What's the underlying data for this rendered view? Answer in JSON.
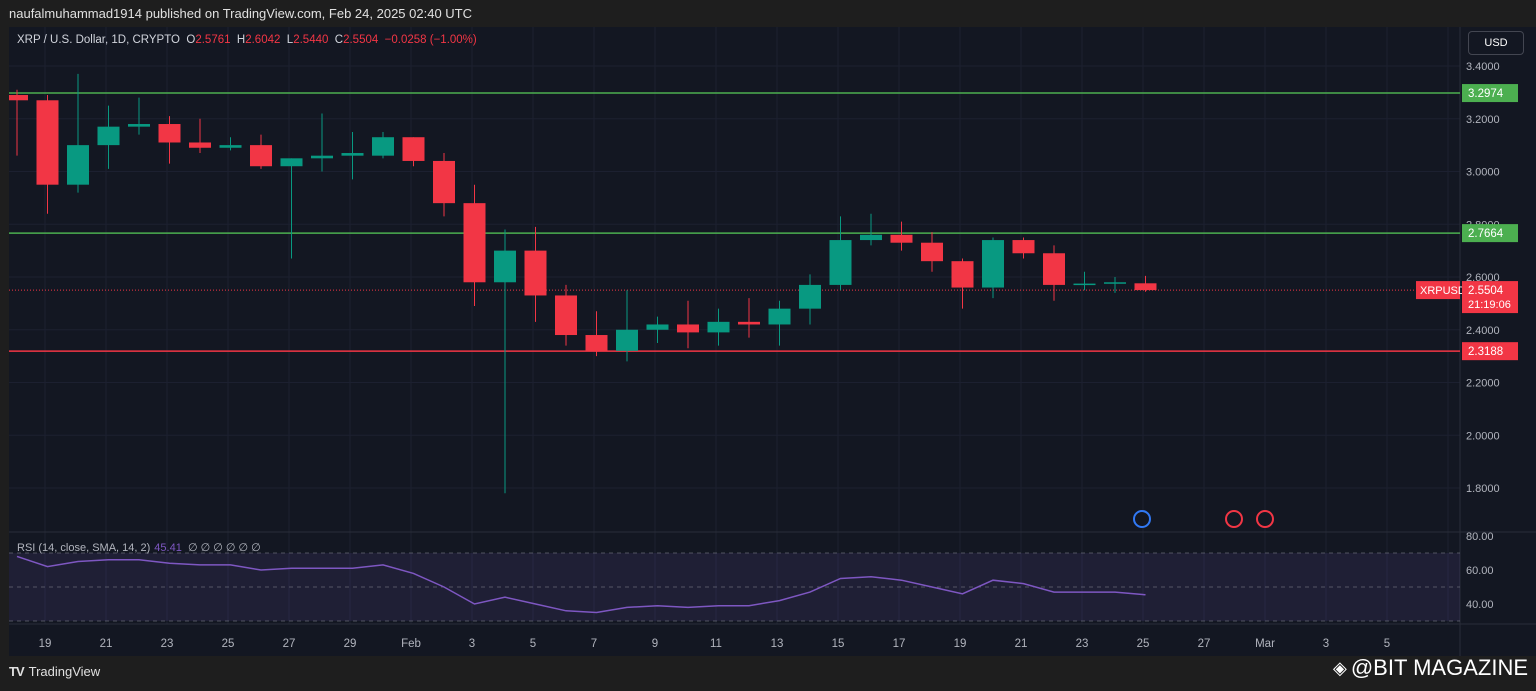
{
  "header": {
    "published": "naufalmuhammad1914 published on TradingView.com, Feb 24, 2025 02:40 UTC"
  },
  "legend": {
    "symbol": "XRP / U.S. Dollar, 1D, CRYPTO",
    "o_label": "O",
    "o": "2.5761",
    "h_label": "H",
    "h": "2.6042",
    "l_label": "L",
    "l": "2.5440",
    "c_label": "C",
    "c": "2.5504",
    "change": "−0.0258 (−1.00%)"
  },
  "currency_button": "USD",
  "price_axis": [
    "3.4000",
    "3.2000",
    "3.0000",
    "2.8000",
    "2.6000",
    "2.4000",
    "2.2000",
    "2.0000",
    "1.8000"
  ],
  "levels": [
    {
      "value": 3.2974,
      "label": "3.2974",
      "color": "#4caf50"
    },
    {
      "value": 2.7664,
      "label": "2.7664",
      "color": "#4caf50"
    },
    {
      "value": 2.3188,
      "label": "2.3188",
      "color": "#f23645"
    }
  ],
  "last_price": {
    "symbol": "XRPUSD",
    "price": "2.5504",
    "value": 2.5504,
    "countdown": "21:19:06"
  },
  "rsi": {
    "label": "RSI (14, close, SMA, 14, 2)",
    "value": "45.41",
    "extras": "∅ ∅ ∅ ∅ ∅ ∅",
    "axis": [
      "80.00",
      "60.00",
      "40.00"
    ]
  },
  "time_axis": [
    "19",
    "21",
    "23",
    "25",
    "27",
    "29",
    "Feb",
    "3",
    "5",
    "7",
    "9",
    "11",
    "13",
    "15",
    "17",
    "19",
    "21",
    "23",
    "25",
    "27",
    "Mar",
    "3",
    "5"
  ],
  "footer": {
    "brand": "TradingView",
    "watermark": "@BIT MAGAZINE"
  },
  "colors": {
    "up": "#089981",
    "down": "#f23645",
    "rsi": "#7e57c2"
  },
  "chart_data": {
    "type": "candlestick",
    "ylim": [
      1.7,
      3.5
    ],
    "candles": [
      [
        3.29,
        3.27,
        3.31,
        3.06
      ],
      [
        3.27,
        2.95,
        3.29,
        2.84
      ],
      [
        2.95,
        3.1,
        3.37,
        2.92
      ],
      [
        3.1,
        3.17,
        3.25,
        3.01
      ],
      [
        3.17,
        3.18,
        3.28,
        3.14
      ],
      [
        3.18,
        3.11,
        3.21,
        3.03
      ],
      [
        3.11,
        3.09,
        3.2,
        3.07
      ],
      [
        3.09,
        3.1,
        3.13,
        3.08
      ],
      [
        3.1,
        3.02,
        3.14,
        3.01
      ],
      [
        3.02,
        3.05,
        3.05,
        2.67
      ],
      [
        3.05,
        3.06,
        3.22,
        3.0
      ],
      [
        3.06,
        3.07,
        3.15,
        2.97
      ],
      [
        3.06,
        3.13,
        3.15,
        3.05
      ],
      [
        3.13,
        3.04,
        3.13,
        3.02
      ],
      [
        3.04,
        2.88,
        3.07,
        2.83
      ],
      [
        2.88,
        2.58,
        2.95,
        2.49
      ],
      [
        2.58,
        2.7,
        2.78,
        1.78
      ],
      [
        2.7,
        2.53,
        2.79,
        2.43
      ],
      [
        2.53,
        2.38,
        2.57,
        2.34
      ],
      [
        2.38,
        2.32,
        2.47,
        2.3
      ],
      [
        2.32,
        2.4,
        2.55,
        2.28
      ],
      [
        2.4,
        2.42,
        2.45,
        2.35
      ],
      [
        2.42,
        2.39,
        2.51,
        2.33
      ],
      [
        2.39,
        2.43,
        2.48,
        2.34
      ],
      [
        2.43,
        2.42,
        2.52,
        2.37
      ],
      [
        2.42,
        2.48,
        2.51,
        2.34
      ],
      [
        2.48,
        2.57,
        2.61,
        2.42
      ],
      [
        2.57,
        2.74,
        2.83,
        2.55
      ],
      [
        2.74,
        2.76,
        2.84,
        2.72
      ],
      [
        2.76,
        2.73,
        2.81,
        2.7
      ],
      [
        2.73,
        2.66,
        2.77,
        2.62
      ],
      [
        2.66,
        2.56,
        2.67,
        2.48
      ],
      [
        2.56,
        2.74,
        2.75,
        2.52
      ],
      [
        2.74,
        2.69,
        2.75,
        2.67
      ],
      [
        2.69,
        2.57,
        2.72,
        2.51
      ],
      [
        2.57,
        2.575,
        2.62,
        2.55
      ],
      [
        2.575,
        2.58,
        2.6,
        2.54
      ],
      [
        2.5761,
        2.5504,
        2.6042,
        2.544
      ]
    ],
    "rsi": [
      68,
      62,
      65,
      66,
      66,
      64,
      63,
      63,
      60,
      61,
      61,
      61,
      63,
      58,
      50,
      40,
      44,
      40,
      36,
      35,
      38,
      39,
      38,
      39,
      39,
      42,
      47,
      55,
      56,
      54,
      50,
      46,
      54,
      52,
      47,
      47,
      47,
      45.41
    ]
  }
}
